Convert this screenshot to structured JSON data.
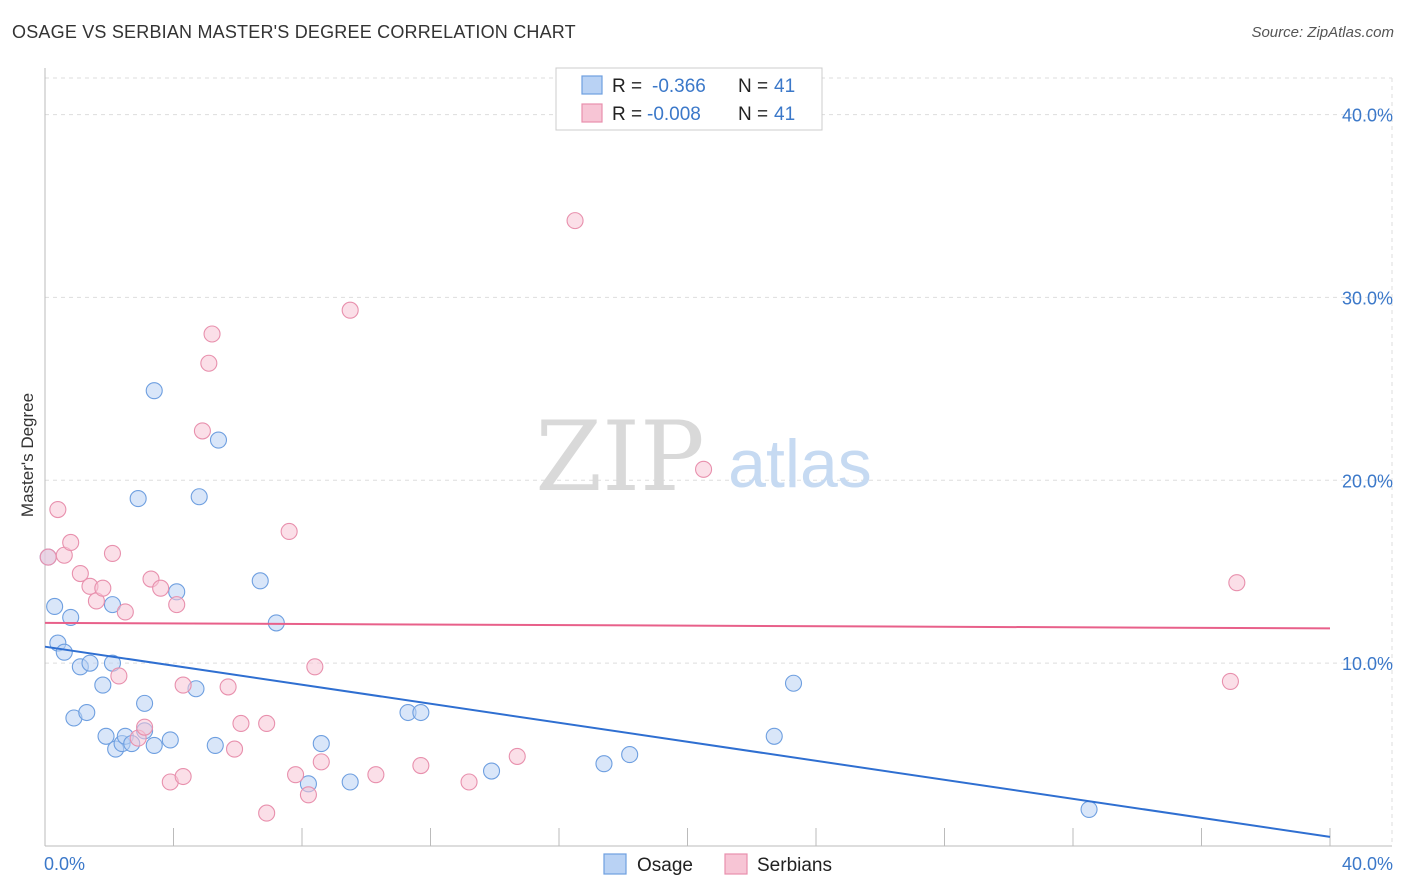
{
  "title": "OSAGE VS SERBIAN MASTER'S DEGREE CORRELATION CHART",
  "source": "Source: ZipAtlas.com",
  "watermark": {
    "zip": "ZIP",
    "atlas": "atlas"
  },
  "colors": {
    "osage": "#6e9fe0",
    "osage_fill": "#b9d2f4",
    "osage_line": "#2f6fd1",
    "serbians": "#e890ad",
    "serbians_fill": "#f7c5d5",
    "serbians_line": "#e8608a",
    "tick": "#3b78c9",
    "grid": "#dddddd"
  },
  "legend": {
    "rows": [
      {
        "r_label": "R =",
        "r_value": "-0.366",
        "n_label": "N =",
        "n_value": "41"
      },
      {
        "r_label": "R =",
        "r_value": "-0.008",
        "n_label": "N =",
        "n_value": "41"
      }
    ]
  },
  "chart_data": {
    "type": "scatter",
    "title": "OSAGE VS SERBIAN MASTER'S DEGREE CORRELATION CHART",
    "xlabel": "",
    "ylabel": "Master's Degree",
    "xlim": [
      0,
      40
    ],
    "ylim": [
      0,
      42
    ],
    "x_tick_labels": [
      "0.0%",
      "40.0%"
    ],
    "y_ticks": [
      10,
      20,
      30,
      40
    ],
    "y_tick_labels": [
      "10.0%",
      "20.0%",
      "30.0%",
      "40.0%"
    ],
    "grid": true,
    "legend_position": "top-center",
    "series": [
      {
        "name": "Osage",
        "r": -0.366,
        "n": 41,
        "trend": {
          "x": [
            0,
            40
          ],
          "y": [
            10.9,
            0.5
          ]
        },
        "points": [
          [
            0.1,
            15.8
          ],
          [
            0.3,
            13.1
          ],
          [
            0.4,
            11.1
          ],
          [
            0.6,
            10.6
          ],
          [
            0.8,
            12.5
          ],
          [
            0.9,
            7.0
          ],
          [
            1.1,
            9.8
          ],
          [
            1.3,
            7.3
          ],
          [
            1.4,
            10.0
          ],
          [
            1.8,
            8.8
          ],
          [
            1.9,
            6.0
          ],
          [
            2.1,
            13.2
          ],
          [
            2.1,
            10.0
          ],
          [
            2.2,
            5.3
          ],
          [
            2.4,
            5.6
          ],
          [
            2.5,
            6.0
          ],
          [
            2.7,
            5.6
          ],
          [
            2.9,
            19.0
          ],
          [
            3.1,
            7.8
          ],
          [
            3.1,
            6.3
          ],
          [
            3.4,
            24.9
          ],
          [
            3.4,
            5.5
          ],
          [
            3.9,
            5.8
          ],
          [
            4.1,
            13.9
          ],
          [
            4.7,
            8.6
          ],
          [
            4.8,
            19.1
          ],
          [
            5.3,
            5.5
          ],
          [
            5.4,
            22.2
          ],
          [
            6.7,
            14.5
          ],
          [
            7.2,
            12.2
          ],
          [
            8.2,
            3.4
          ],
          [
            8.6,
            5.6
          ],
          [
            9.5,
            3.5
          ],
          [
            11.3,
            7.3
          ],
          [
            11.7,
            7.3
          ],
          [
            13.9,
            4.1
          ],
          [
            17.4,
            4.5
          ],
          [
            18.2,
            5.0
          ],
          [
            22.7,
            6.0
          ],
          [
            23.3,
            8.9
          ],
          [
            32.5,
            2.0
          ]
        ]
      },
      {
        "name": "Serbians",
        "r": -0.008,
        "n": 41,
        "trend": {
          "x": [
            0,
            40
          ],
          "y": [
            12.2,
            11.9
          ]
        },
        "points": [
          [
            0.1,
            15.8
          ],
          [
            0.4,
            18.4
          ],
          [
            0.6,
            15.9
          ],
          [
            0.8,
            16.6
          ],
          [
            1.1,
            14.9
          ],
          [
            1.4,
            14.2
          ],
          [
            1.6,
            13.4
          ],
          [
            1.8,
            14.1
          ],
          [
            2.1,
            16.0
          ],
          [
            2.3,
            9.3
          ],
          [
            2.5,
            12.8
          ],
          [
            2.9,
            5.9
          ],
          [
            3.1,
            6.5
          ],
          [
            3.3,
            14.6
          ],
          [
            3.6,
            14.1
          ],
          [
            3.9,
            3.5
          ],
          [
            4.1,
            13.2
          ],
          [
            4.3,
            8.8
          ],
          [
            4.3,
            3.8
          ],
          [
            4.9,
            22.7
          ],
          [
            5.1,
            26.4
          ],
          [
            5.2,
            28.0
          ],
          [
            5.7,
            8.7
          ],
          [
            5.9,
            5.3
          ],
          [
            6.1,
            6.7
          ],
          [
            6.9,
            1.8
          ],
          [
            6.9,
            6.7
          ],
          [
            7.6,
            17.2
          ],
          [
            7.8,
            3.9
          ],
          [
            8.2,
            2.8
          ],
          [
            8.4,
            9.8
          ],
          [
            8.6,
            4.6
          ],
          [
            9.5,
            29.3
          ],
          [
            10.3,
            3.9
          ],
          [
            11.7,
            4.4
          ],
          [
            13.2,
            3.5
          ],
          [
            14.7,
            4.9
          ],
          [
            16.5,
            34.2
          ],
          [
            20.5,
            20.6
          ],
          [
            37.1,
            14.4
          ],
          [
            36.9,
            9.0
          ]
        ]
      }
    ]
  }
}
